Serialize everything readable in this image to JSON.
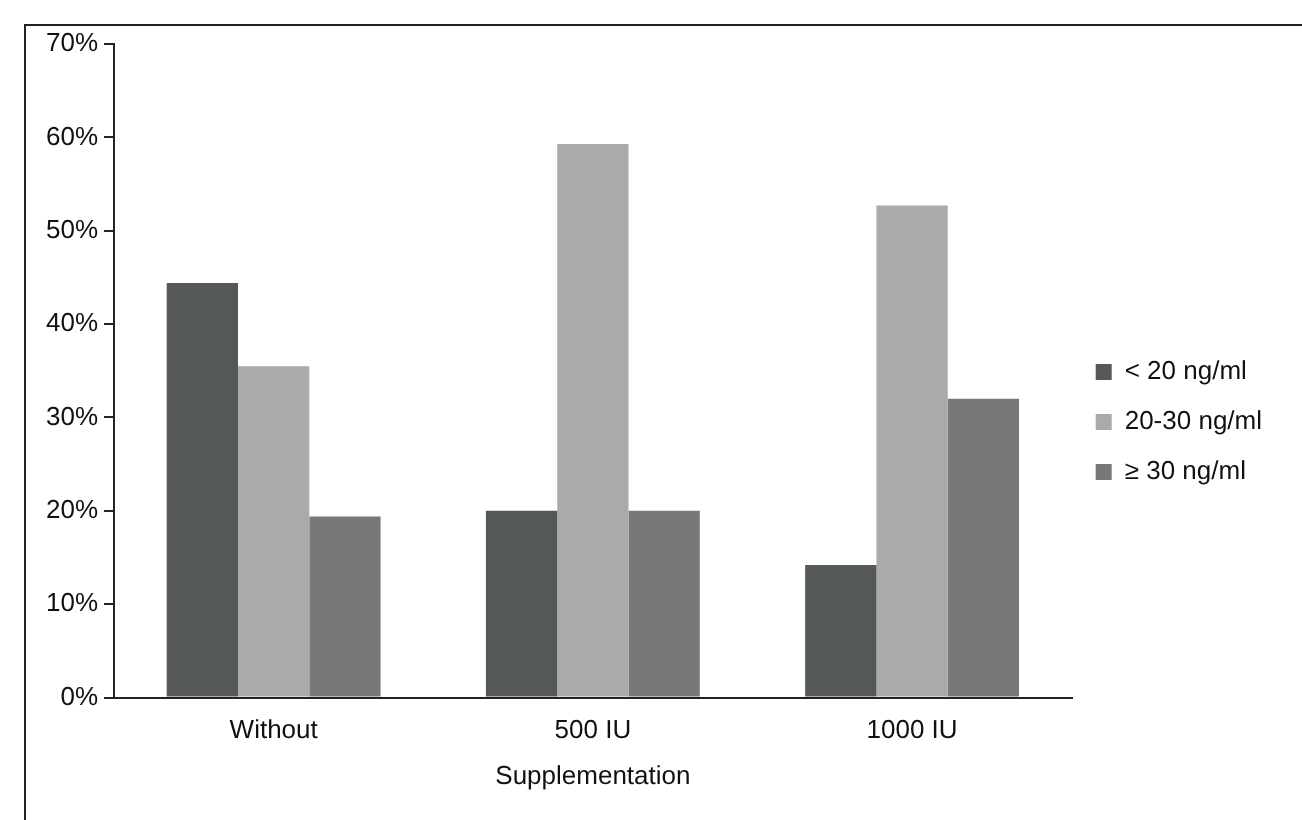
{
  "chart_data": {
    "type": "bar",
    "xlabel": "Supplementation",
    "categories": [
      "Without",
      "500 IU",
      "1000 IU"
    ],
    "series": [
      {
        "name": "< 20 ng/ml",
        "color": "#555859",
        "values": [
          44.4,
          20.0,
          14.2
        ]
      },
      {
        "name": "20-30 ng/ml",
        "color": "#a9aaac",
        "values": [
          35.5,
          59.3,
          52.7
        ]
      },
      {
        "name": "≥ 30 ng/ml",
        "color": "#77787a",
        "values": [
          19.4,
          20.0,
          32.0
        ]
      }
    ],
    "ylim": [
      0,
      70
    ],
    "yticks": [
      {
        "value": 0,
        "label": "0%"
      },
      {
        "value": 10,
        "label": "10%"
      },
      {
        "value": 20,
        "label": "20%"
      },
      {
        "value": 30,
        "label": "30%"
      },
      {
        "value": 40,
        "label": "40%"
      },
      {
        "value": 50,
        "label": "50%"
      },
      {
        "value": 60,
        "label": "60%"
      },
      {
        "value": 70,
        "label": "70%"
      }
    ],
    "grid": false,
    "legend": "right"
  }
}
